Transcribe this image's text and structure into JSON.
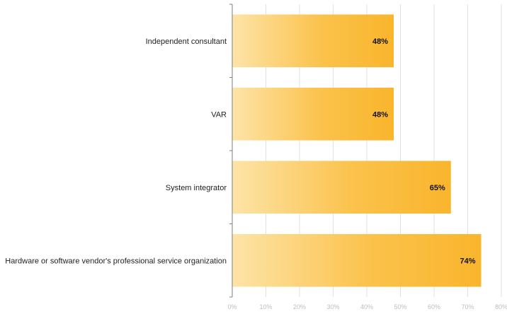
{
  "chart_data": {
    "type": "bar",
    "orientation": "horizontal",
    "categories": [
      "Independent consultant",
      "VAR",
      "System integrator",
      "Hardware or software vendor's professional service organization"
    ],
    "values": [
      48,
      48,
      65,
      74
    ],
    "value_labels": [
      "48%",
      "48%",
      "65%",
      "74%"
    ],
    "xlim": [
      0,
      80
    ],
    "xticks": [
      0,
      10,
      20,
      30,
      40,
      50,
      60,
      70,
      80
    ],
    "xtick_labels": [
      "0%",
      "10%",
      "20%",
      "30%",
      "40%",
      "50%",
      "60%",
      "70%",
      "80%"
    ],
    "grid": true,
    "legend": "none",
    "title": "",
    "xlabel": "",
    "ylabel": "",
    "colors": {
      "bar_start": "#fde4a8",
      "bar_end": "#f9b52c",
      "grid": "#e2e2e2",
      "axis": "#7f7f7f",
      "tick_text": "#bdbdbd"
    }
  }
}
